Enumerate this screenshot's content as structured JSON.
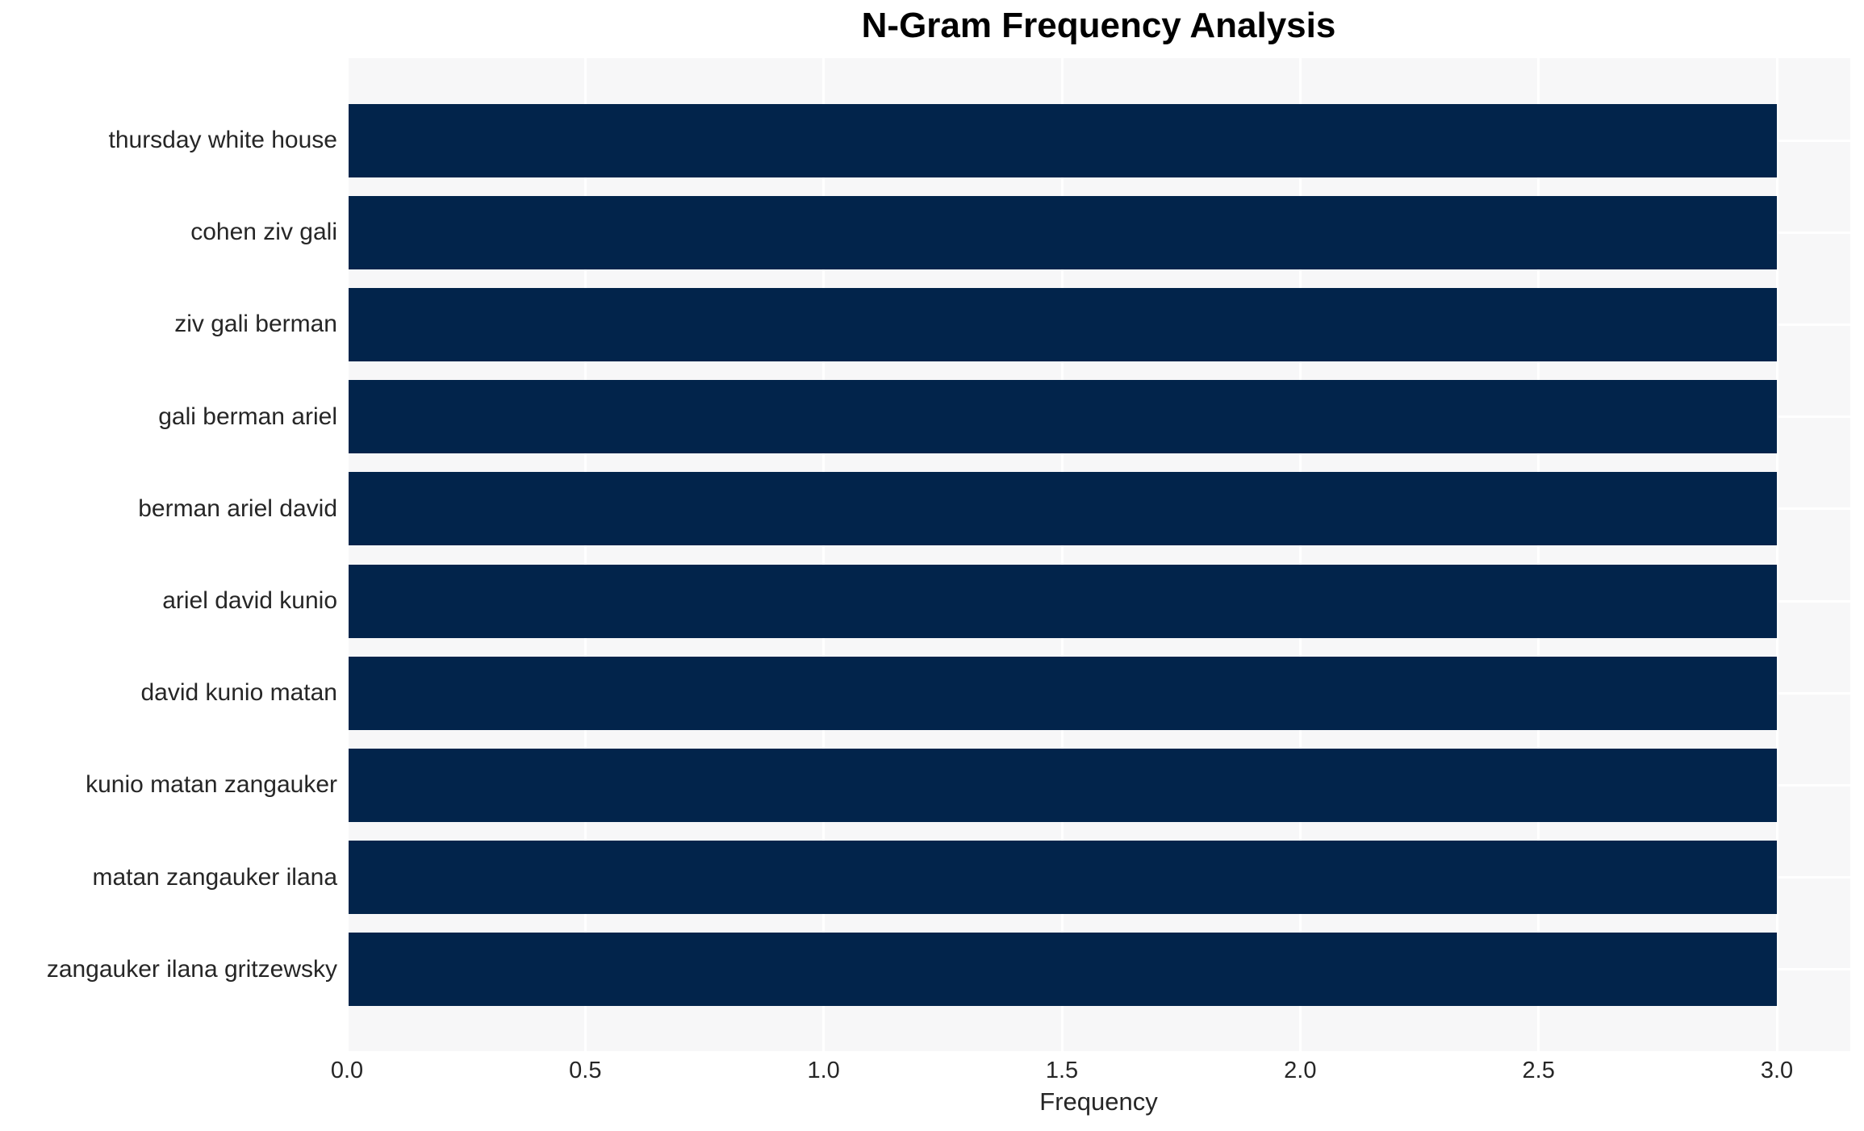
{
  "chart_data": {
    "type": "bar",
    "orientation": "horizontal",
    "title": "N-Gram Frequency Analysis",
    "xlabel": "Frequency",
    "ylabel": "",
    "categories": [
      "thursday white house",
      "cohen ziv gali",
      "ziv gali berman",
      "gali berman ariel",
      "berman ariel david",
      "ariel david kunio",
      "david kunio matan",
      "kunio matan zangauker",
      "matan zangauker ilana",
      "zangauker ilana gritzewsky"
    ],
    "values": [
      3,
      3,
      3,
      3,
      3,
      3,
      3,
      3,
      3,
      3
    ],
    "xticks": [
      "0.0",
      "0.5",
      "1.0",
      "1.5",
      "2.0",
      "2.5",
      "3.0"
    ],
    "xlim": [
      0,
      3.154
    ],
    "grid": true,
    "legend": false,
    "colors": {
      "bar": "#02244B",
      "plot_bg": "#F7F7F8",
      "grid": "#FFFFFF",
      "text": "#262626",
      "title": "#000000"
    }
  }
}
